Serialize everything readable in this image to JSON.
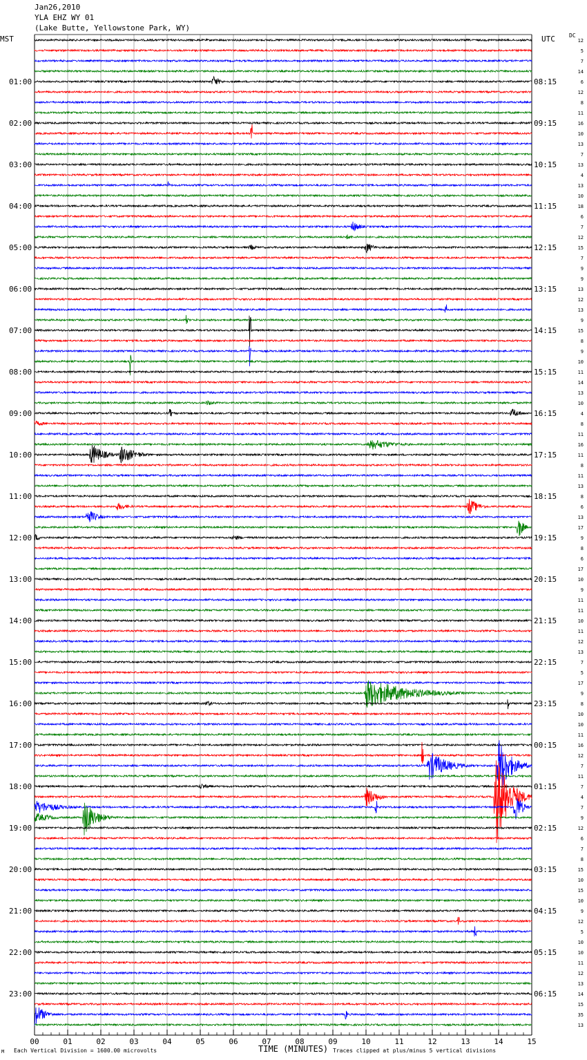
{
  "header": {
    "date": "Jan26,2010",
    "station": "YLA EHZ WY 01",
    "location": "(Lake Butte, Yellowstone Park, WY)"
  },
  "labels": {
    "left_tz": "MST",
    "right_tz": "UTC",
    "dc_header": "DC",
    "x_title": "TIME (MINUTES)",
    "scale_note": "Each Vertical Division = 1600.00 microvolts",
    "clip_note": "Traces clipped at plus/minus 5 vertical divisions",
    "corner_mark": "M"
  },
  "colors": {
    "black": "#000000",
    "red": "#ff0000",
    "blue": "#0000ff",
    "green": "#007f00",
    "grid": "#8c8c8c"
  },
  "chart_data": {
    "type": "line",
    "title": "YLA EHZ WY 01",
    "xlabel": "TIME (MINUTES)",
    "xlim": [
      0,
      15
    ],
    "x_tick_labels": [
      "00",
      "01",
      "02",
      "03",
      "04",
      "05",
      "06",
      "07",
      "08",
      "09",
      "10",
      "11",
      "12",
      "13",
      "14",
      "15"
    ],
    "trace_count": 96,
    "trace_color_cycle": [
      "black",
      "red",
      "blue",
      "green"
    ],
    "left_hour_labels": [
      "01:00",
      "02:00",
      "03:00",
      "04:00",
      "05:00",
      "06:00",
      "07:00",
      "08:00",
      "09:00",
      "10:00",
      "11:00",
      "12:00",
      "13:00",
      "14:00",
      "15:00",
      "16:00",
      "17:00",
      "18:00",
      "19:00",
      "20:00",
      "21:00",
      "22:00",
      "23:00"
    ],
    "right_hour_labels": [
      "08:15",
      "09:15",
      "10:15",
      "11:15",
      "12:15",
      "13:15",
      "14:15",
      "15:15",
      "16:15",
      "17:15",
      "18:15",
      "19:15",
      "20:15",
      "21:15",
      "22:15",
      "23:15",
      "00:15",
      "01:15",
      "02:15",
      "03:15",
      "04:15",
      "05:15",
      "06:15"
    ],
    "dc_offsets": [
      12,
      5,
      7,
      14,
      6,
      12,
      8,
      11,
      16,
      10,
      13,
      7,
      13,
      4,
      13,
      10,
      18,
      6,
      7,
      12,
      15,
      7,
      9,
      9,
      13,
      12,
      13,
      9,
      15,
      8,
      9,
      10,
      11,
      14,
      13,
      10,
      4,
      8,
      11,
      16,
      11,
      8,
      11,
      13,
      8,
      6,
      13,
      17,
      9,
      8,
      6,
      17,
      10,
      9,
      11,
      11,
      10,
      11,
      12,
      13,
      7,
      5,
      17,
      9,
      8,
      10,
      10,
      11,
      16,
      12,
      7,
      11,
      7,
      4,
      7,
      9,
      12,
      6,
      7,
      8,
      15,
      10,
      15,
      10,
      9,
      12,
      5,
      10,
      10,
      11,
      12,
      13,
      14,
      15,
      35,
      13
    ],
    "events": [
      {
        "row": 4,
        "minute": 5.4,
        "amplitude": 0.6,
        "duration": 0.5,
        "kind": "quake"
      },
      {
        "row": 9,
        "minute": 6.55,
        "amplitude": 1.0,
        "duration": 0.05,
        "kind": "spike"
      },
      {
        "row": 14,
        "minute": 4.05,
        "amplitude": 0.4,
        "duration": 0.05,
        "kind": "spike"
      },
      {
        "row": 18,
        "minute": 9.6,
        "amplitude": 0.6,
        "duration": 0.6,
        "kind": "quake"
      },
      {
        "row": 19,
        "minute": 9.4,
        "amplitude": 0.25,
        "duration": 0.6,
        "kind": "quake"
      },
      {
        "row": 20,
        "minute": 6.5,
        "amplitude": 0.35,
        "duration": 0.5,
        "kind": "quake"
      },
      {
        "row": 20,
        "minute": 10.0,
        "amplitude": 0.6,
        "duration": 0.6,
        "kind": "quake"
      },
      {
        "row": 26,
        "minute": 12.4,
        "amplitude": 0.5,
        "duration": 0.05,
        "kind": "spike"
      },
      {
        "row": 27,
        "minute": 4.6,
        "amplitude": 0.5,
        "duration": 0.05,
        "kind": "spike"
      },
      {
        "row": 28,
        "minute": 6.5,
        "amplitude": 2.0,
        "duration": 0.05,
        "kind": "spike"
      },
      {
        "row": 30,
        "minute": 6.5,
        "amplitude": 1.5,
        "duration": 0.05,
        "kind": "spike"
      },
      {
        "row": 31,
        "minute": 2.9,
        "amplitude": 1.5,
        "duration": 0.05,
        "kind": "spike"
      },
      {
        "row": 35,
        "minute": 5.2,
        "amplitude": 0.3,
        "duration": 0.8,
        "kind": "quake"
      },
      {
        "row": 36,
        "minute": 4.1,
        "amplitude": 0.4,
        "duration": 0.05,
        "kind": "spike"
      },
      {
        "row": 36,
        "minute": 14.4,
        "amplitude": 0.5,
        "duration": 0.8,
        "kind": "quake"
      },
      {
        "row": 37,
        "minute": 0.0,
        "amplitude": 0.3,
        "duration": 1.0,
        "kind": "quake"
      },
      {
        "row": 39,
        "minute": 10.1,
        "amplitude": 0.6,
        "duration": 2.0,
        "kind": "quake"
      },
      {
        "row": 40,
        "minute": 1.7,
        "amplitude": 1.2,
        "duration": 1.0,
        "kind": "quake"
      },
      {
        "row": 40,
        "minute": 2.6,
        "amplitude": 1.0,
        "duration": 1.2,
        "kind": "quake"
      },
      {
        "row": 45,
        "minute": 2.5,
        "amplitude": 0.4,
        "duration": 1.0,
        "kind": "quake"
      },
      {
        "row": 45,
        "minute": 13.1,
        "amplitude": 0.9,
        "duration": 0.8,
        "kind": "quake"
      },
      {
        "row": 46,
        "minute": 1.6,
        "amplitude": 0.8,
        "duration": 0.8,
        "kind": "quake"
      },
      {
        "row": 47,
        "minute": 14.6,
        "amplitude": 1.2,
        "duration": 0.4,
        "kind": "quake"
      },
      {
        "row": 48,
        "minute": 0.0,
        "amplitude": 0.4,
        "duration": 0.6,
        "kind": "quake"
      },
      {
        "row": 48,
        "minute": 6.0,
        "amplitude": 0.3,
        "duration": 0.8,
        "kind": "quake"
      },
      {
        "row": 63,
        "minute": 10.0,
        "amplitude": 1.5,
        "duration": 3.5,
        "kind": "quake"
      },
      {
        "row": 64,
        "minute": 5.2,
        "amplitude": 0.4,
        "duration": 0.4,
        "kind": "quake"
      },
      {
        "row": 64,
        "minute": 14.3,
        "amplitude": 0.6,
        "duration": 0.05,
        "kind": "spike"
      },
      {
        "row": 69,
        "minute": 11.7,
        "amplitude": 1.5,
        "duration": 0.05,
        "kind": "spike"
      },
      {
        "row": 70,
        "minute": 11.9,
        "amplitude": 1.5,
        "duration": 1.5,
        "kind": "quake"
      },
      {
        "row": 70,
        "minute": 14.0,
        "amplitude": 3.0,
        "duration": 1.0,
        "kind": "quake"
      },
      {
        "row": 72,
        "minute": 5.0,
        "amplitude": 0.3,
        "duration": 1.0,
        "kind": "quake"
      },
      {
        "row": 73,
        "minute": 10.0,
        "amplitude": 1.0,
        "duration": 1.0,
        "kind": "quake"
      },
      {
        "row": 73,
        "minute": 13.9,
        "amplitude": 5.0,
        "duration": 1.1,
        "kind": "quake"
      },
      {
        "row": 74,
        "minute": 0.0,
        "amplitude": 0.7,
        "duration": 2.0,
        "kind": "quake"
      },
      {
        "row": 74,
        "minute": 10.3,
        "amplitude": 0.8,
        "duration": 0.05,
        "kind": "spike"
      },
      {
        "row": 74,
        "minute": 14.5,
        "amplitude": 1.8,
        "duration": 0.5,
        "kind": "quake"
      },
      {
        "row": 75,
        "minute": 0.0,
        "amplitude": 0.5,
        "duration": 1.5,
        "kind": "quake"
      },
      {
        "row": 75,
        "minute": 1.5,
        "amplitude": 1.8,
        "duration": 1.0,
        "kind": "quake"
      },
      {
        "row": 85,
        "minute": 12.8,
        "amplitude": 0.4,
        "duration": 0.05,
        "kind": "spike"
      },
      {
        "row": 86,
        "minute": 13.3,
        "amplitude": 0.6,
        "duration": 0.05,
        "kind": "spike"
      },
      {
        "row": 94,
        "minute": 0.0,
        "amplitude": 1.2,
        "duration": 0.8,
        "kind": "quake"
      },
      {
        "row": 94,
        "minute": 9.4,
        "amplitude": 0.5,
        "duration": 0.05,
        "kind": "spike"
      }
    ]
  }
}
